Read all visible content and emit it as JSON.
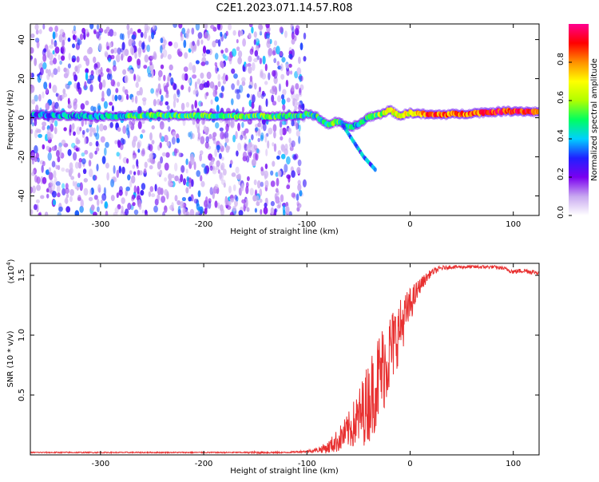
{
  "title": "C2E1.2023.071.14.57.R08",
  "chart_data": [
    {
      "type": "heatmap",
      "xlabel": "Height of straight line (km)",
      "ylabel": "Frequency (Hz)",
      "xlim": [
        -368,
        125
      ],
      "ylim": [
        -50,
        48
      ],
      "xticks": [
        -300,
        -200,
        -100,
        0,
        100
      ],
      "xtick_labels": [
        "-300",
        "-200",
        "-100",
        "0",
        "100"
      ],
      "yticks": [
        -40,
        -20,
        0,
        20,
        40
      ],
      "ytick_labels": [
        "-40",
        "-20",
        "0",
        "20",
        "40"
      ],
      "noise_region_x": [
        -368,
        -102
      ],
      "ridge": {
        "x": [
          -360,
          -300,
          -250,
          -200,
          -150,
          -105,
          -100,
          -90,
          -80,
          -70,
          -60,
          -50,
          -40,
          -30,
          -20,
          -10,
          0,
          20,
          50,
          80,
          100,
          125
        ],
        "y": [
          1.5,
          0.8,
          1.2,
          1.0,
          0.8,
          1.0,
          2.0,
          0.5,
          -3.5,
          -2.0,
          -5.0,
          -3.5,
          0.5,
          1.5,
          4.0,
          1.0,
          2.5,
          1.5,
          2.0,
          3.0,
          3.5,
          3.0
        ],
        "amplitude": [
          0.35,
          0.4,
          0.5,
          0.5,
          0.5,
          0.45,
          0.45,
          0.45,
          0.5,
          0.5,
          0.45,
          0.4,
          0.45,
          0.6,
          0.65,
          0.65,
          0.7,
          0.85,
          0.8,
          0.9,
          0.9,
          0.9
        ]
      },
      "branch": {
        "x": [
          -65,
          -55,
          -45,
          -38,
          -33
        ],
        "y": [
          -4,
          -12,
          -20,
          -24,
          -27
        ]
      },
      "colorbar": {
        "label": "Normalized spectral amplitude",
        "range": [
          0.0,
          1.0
        ],
        "ticks": [
          0.0,
          0.2,
          0.4,
          0.6,
          0.8
        ],
        "tick_labels": [
          "0.0",
          "0.2",
          "0.4",
          "0.6",
          "0.8"
        ],
        "colors": [
          "#ffffff",
          "#c8a8f0",
          "#7a00f0",
          "#2020ff",
          "#00d0ff",
          "#00ff60",
          "#b0ff00",
          "#ffff00",
          "#ff9000",
          "#ff0000",
          "#ff0090"
        ]
      }
    },
    {
      "type": "line",
      "xlabel": "Height of straight line (km)",
      "ylabel": "SNR (10 * v/v)",
      "y_multiplier": "(x10",
      "y_multiplier_exp": "4",
      "xlim": [
        -368,
        125
      ],
      "ylim": [
        0,
        1.6
      ],
      "xticks": [
        -300,
        -200,
        -100,
        0,
        100
      ],
      "xtick_labels": [
        "-300",
        "-200",
        "-100",
        "0",
        "100"
      ],
      "yticks": [
        0.5,
        1.0,
        1.5
      ],
      "ytick_labels": [
        "0.5",
        "1.0",
        "1.5"
      ],
      "color": "#e83030",
      "x": [
        -368,
        -300,
        -250,
        -200,
        -160,
        -150,
        -120,
        -100,
        -90,
        -80,
        -70,
        -60,
        -50,
        -40,
        -30,
        -20,
        -10,
        0,
        10,
        20,
        30,
        40,
        50,
        60,
        70,
        80,
        90,
        100,
        110,
        125
      ],
      "y": [
        0.02,
        0.02,
        0.02,
        0.02,
        0.02,
        0.02,
        0.02,
        0.03,
        0.04,
        0.06,
        0.12,
        0.2,
        0.3,
        0.45,
        0.65,
        0.85,
        1.05,
        1.25,
        1.42,
        1.52,
        1.56,
        1.57,
        1.57,
        1.57,
        1.57,
        1.57,
        1.56,
        1.53,
        1.54,
        1.52
      ],
      "noise_envelope": [
        0.005,
        0.005,
        0.005,
        0.005,
        0.005,
        0.01,
        0.005,
        0.01,
        0.02,
        0.05,
        0.1,
        0.15,
        0.25,
        0.35,
        0.4,
        0.35,
        0.25,
        0.15,
        0.06,
        0.03,
        0.02,
        0.015,
        0.015,
        0.015,
        0.015,
        0.015,
        0.015,
        0.02,
        0.02,
        0.02
      ]
    }
  ]
}
